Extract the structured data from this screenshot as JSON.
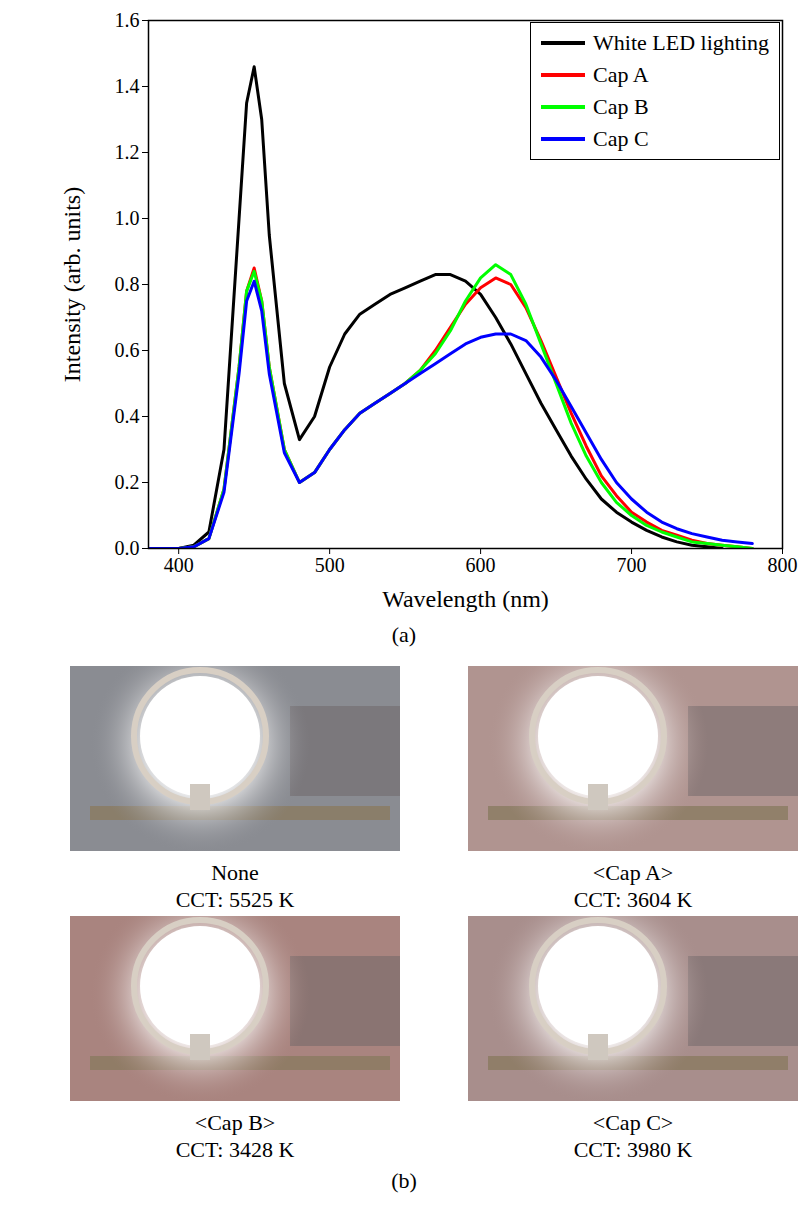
{
  "chart_data": {
    "type": "line",
    "panel_label": "(a)",
    "x_label": "Wavelength (nm)",
    "y_label": "Intensity (arb. units)",
    "x": [
      380,
      390,
      400,
      410,
      420,
      430,
      440,
      445,
      450,
      455,
      460,
      470,
      480,
      490,
      500,
      510,
      520,
      530,
      540,
      550,
      560,
      570,
      580,
      590,
      600,
      610,
      620,
      630,
      640,
      650,
      660,
      670,
      680,
      690,
      700,
      710,
      720,
      730,
      740,
      750,
      760,
      770,
      780
    ],
    "series": [
      {
        "name": "White LED lighting",
        "color": "#000000",
        "values": [
          0,
          0,
          0,
          0.01,
          0.05,
          0.3,
          1.0,
          1.35,
          1.46,
          1.3,
          0.95,
          0.5,
          0.33,
          0.4,
          0.55,
          0.65,
          0.71,
          0.74,
          0.77,
          0.79,
          0.81,
          0.83,
          0.83,
          0.81,
          0.77,
          0.7,
          0.62,
          0.53,
          0.44,
          0.36,
          0.28,
          0.21,
          0.15,
          0.11,
          0.08,
          0.055,
          0.035,
          0.02,
          0.01,
          0.005,
          0,
          null,
          null
        ]
      },
      {
        "name": "Cap A",
        "color": "#ff0000",
        "values": [
          0,
          0,
          0,
          0.005,
          0.03,
          0.18,
          0.55,
          0.78,
          0.85,
          0.75,
          0.55,
          0.3,
          0.2,
          0.23,
          0.3,
          0.36,
          0.41,
          0.44,
          0.47,
          0.5,
          0.54,
          0.6,
          0.67,
          0.74,
          0.79,
          0.82,
          0.8,
          0.73,
          0.63,
          0.52,
          0.41,
          0.31,
          0.22,
          0.16,
          0.11,
          0.08,
          0.055,
          0.04,
          0.025,
          0.015,
          0.01,
          0.005,
          0
        ]
      },
      {
        "name": "Cap B",
        "color": "#00ff00",
        "values": [
          0,
          0,
          0,
          0.005,
          0.03,
          0.18,
          0.55,
          0.78,
          0.84,
          0.75,
          0.55,
          0.3,
          0.2,
          0.23,
          0.3,
          0.36,
          0.41,
          0.44,
          0.47,
          0.5,
          0.54,
          0.59,
          0.66,
          0.75,
          0.82,
          0.86,
          0.83,
          0.74,
          0.62,
          0.5,
          0.38,
          0.28,
          0.2,
          0.14,
          0.1,
          0.07,
          0.05,
          0.035,
          0.02,
          0.015,
          0.01,
          0.005,
          0
        ]
      },
      {
        "name": "Cap C",
        "color": "#0000ff",
        "values": [
          0,
          0,
          0,
          0.005,
          0.03,
          0.17,
          0.53,
          0.75,
          0.81,
          0.72,
          0.53,
          0.29,
          0.2,
          0.23,
          0.3,
          0.36,
          0.41,
          0.44,
          0.47,
          0.5,
          0.53,
          0.56,
          0.59,
          0.62,
          0.64,
          0.65,
          0.65,
          0.63,
          0.58,
          0.51,
          0.43,
          0.35,
          0.27,
          0.2,
          0.15,
          0.11,
          0.08,
          0.06,
          0.045,
          0.035,
          0.025,
          0.02,
          0.015
        ]
      }
    ],
    "xlim": [
      380,
      800
    ],
    "xticks": [
      400,
      500,
      600,
      700,
      800
    ],
    "ylim": [
      0,
      1.6
    ],
    "yticks": [
      {
        "value": 0,
        "label": "0.0"
      },
      {
        "value": 0.2,
        "label": "0.2"
      },
      {
        "value": 0.4,
        "label": "0.4"
      },
      {
        "value": 0.6,
        "label": "0.6"
      },
      {
        "value": 0.8,
        "label": "0.8"
      },
      {
        "value": 1.0,
        "label": "1.0"
      },
      {
        "value": 1.2,
        "label": "1.2"
      },
      {
        "value": 1.4,
        "label": "1.4"
      },
      {
        "value": 1.6,
        "label": "1.6"
      }
    ],
    "legend": "top-right",
    "grid": false
  },
  "photo_panel": {
    "panel_label": "(b)",
    "photos": [
      {
        "title": "None",
        "caption": "CCT: 5525 K"
      },
      {
        "title": "<Cap A>",
        "caption": "CCT: 3604 K"
      },
      {
        "title": "<Cap B>",
        "caption": "CCT: 3428 K"
      },
      {
        "title": "<Cap C>",
        "caption": "CCT: 3980 K"
      }
    ]
  }
}
